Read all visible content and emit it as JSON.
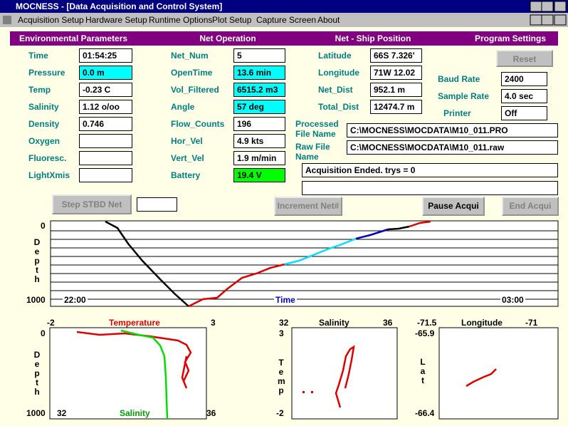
{
  "window": {
    "title": "MOCNESS - [Data Acquisition and Control System]"
  },
  "menu": {
    "items": [
      "Acquisition Setup",
      "Hardware Setup",
      "Runtime Options",
      "Plot Setup",
      "Capture Screen",
      "About"
    ]
  },
  "headings": [
    "Environmental Parameters",
    "Net Operation",
    "Net - Ship Position",
    "Program Settings"
  ],
  "environmental": [
    {
      "label": "Time",
      "value": "01:54:25",
      "color": "#ffffff"
    },
    {
      "label": "Pressure",
      "value": "0.0 m",
      "color": "#00ffff"
    },
    {
      "label": "Temp",
      "value": "-0.23 C",
      "color": "#ffffff"
    },
    {
      "label": "Salinity",
      "value": "1.12 o/oo",
      "color": "#ffffff"
    },
    {
      "label": "Density",
      "value": "0.746",
      "color": "#ffffff"
    },
    {
      "label": "Oxygen",
      "color": "#ffffff"
    },
    {
      "label": "Fluoresc.",
      "color": "#ffffff"
    },
    {
      "label": "LightXmis",
      "color": "#ffffff"
    }
  ],
  "net_operation": [
    {
      "label": "Net_Num",
      "value": "5",
      "color": "#ffffff"
    },
    {
      "label": "OpenTime",
      "value": "13.6 min",
      "color": "#00ffff"
    },
    {
      "label": "Vol_Filtered",
      "value": "6515.2 m3",
      "color": "#00ffff"
    },
    {
      "label": "Angle",
      "value": "57 deg",
      "color": "#00ffff"
    },
    {
      "label": "Flow_Counts",
      "value": "196",
      "color": "#ffffff"
    },
    {
      "label": "Hor_Vel",
      "value": "4.9 kts",
      "color": "#ffffff"
    },
    {
      "label": "Vert_Vel",
      "value": "1.9 m/min",
      "color": "#ffffff"
    },
    {
      "label": "Battery",
      "value": "19.4 V",
      "color": "#00ff00"
    }
  ],
  "position": [
    {
      "label": "Latitude",
      "value": "66S 7.326'",
      "color": "#ffffff"
    },
    {
      "label": "Longitude",
      "value": "71W 12.02",
      "color": "#ffffff"
    },
    {
      "label": "Net_Dist",
      "value": "952.1 m",
      "color": "#ffffff"
    },
    {
      "label": "Total_Dist",
      "value": "12474.7 m",
      "color": "#ffffff"
    }
  ],
  "settings": {
    "reset": "Reset",
    "fields": [
      {
        "label": "Baud Rate",
        "value": "2400"
      },
      {
        "label": "Sample Rate",
        "value": "4.0 sec"
      },
      {
        "label": "Printer",
        "value": "Off"
      }
    ]
  },
  "files": {
    "processed_label": "Processed File Name",
    "processed": "C:\\MOCNESS\\MOCDATA\\M10_011.PRO",
    "raw_label": "Raw File Name",
    "raw": "C:\\MOCNESS\\MOCDATA\\M10_011.raw",
    "status": "Acquisition Ended. trys = 0"
  },
  "buttons": {
    "step": "Step STBD Net",
    "increment": "Increment Net#",
    "pause": "Pause Acqui",
    "end": "End Acqui"
  },
  "depth_plot": {
    "y_top": "0",
    "y_bottom": "1000",
    "y_label": "Depth",
    "x_left": "22:00",
    "x_label": "Time",
    "x_right": "03:00"
  },
  "profile_plot": {
    "top_left": "-2",
    "top_label": "Temperature",
    "top_right": "3",
    "y_top": "0",
    "y_bottom": "1000",
    "y_label": "Depth",
    "bottom_left": "32",
    "bottom_label": "Salinity",
    "bottom_right": "36"
  },
  "ts_plot": {
    "x_left": "32",
    "x_label": "Salinity",
    "x_right": "36",
    "y_top": "3",
    "y_bottom": "-2",
    "y_label": "Temp"
  },
  "position_plot": {
    "x_left": "-71.5",
    "x_label": "Longitude",
    "x_right": "-71",
    "y_top": "-65.9",
    "y_bottom": "-66.4",
    "y_label": "Lat"
  }
}
